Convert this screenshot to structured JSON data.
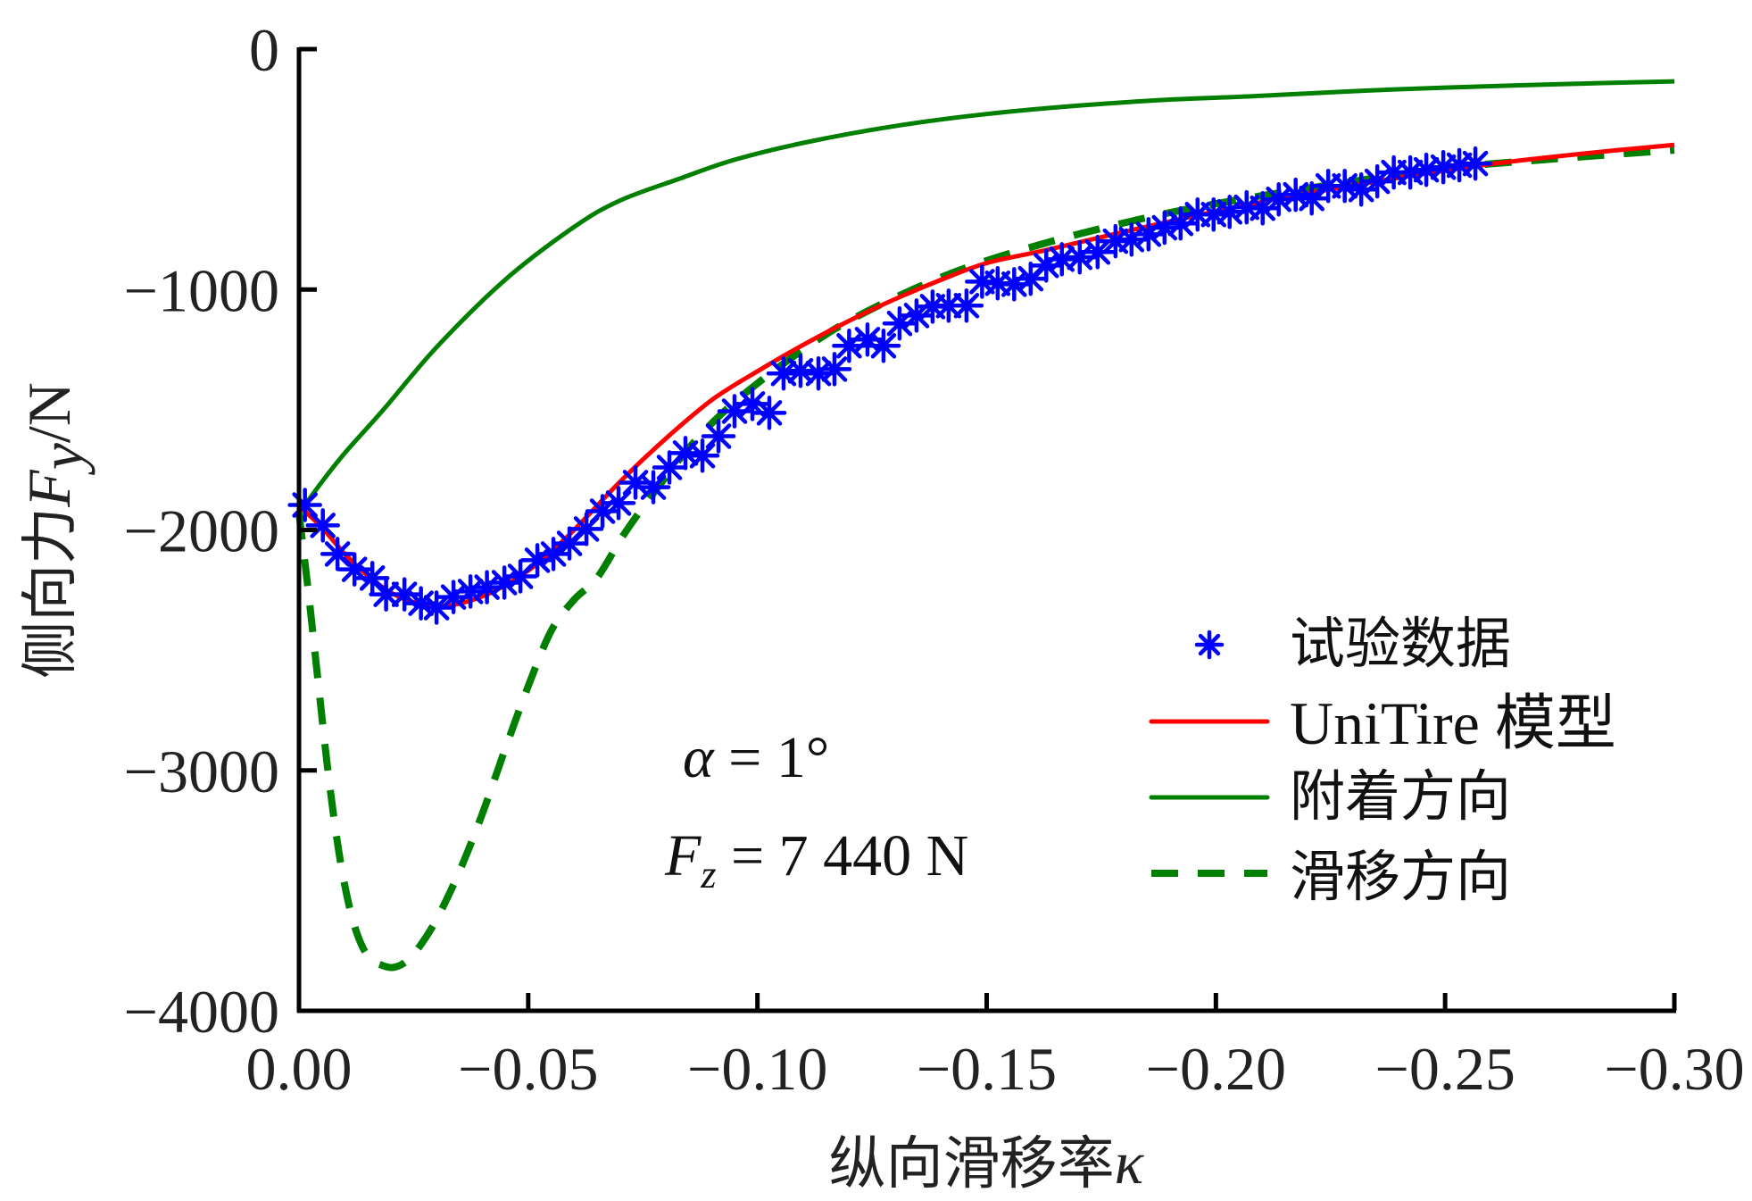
{
  "chart_data": {
    "type": "line",
    "title": "",
    "xlabel": "纵向滑移率κ",
    "xlabel_parts": {
      "text": "纵向滑移率",
      "symbol": "κ"
    },
    "ylabel": "侧向力Fy/N",
    "ylabel_parts": {
      "text": "侧向力",
      "symbol": "F",
      "subscript": "y",
      "unit": "/N"
    },
    "xlim": [
      0.0,
      -0.3
    ],
    "ylim": [
      -4000,
      0
    ],
    "x_ticks": [
      0.0,
      -0.05,
      -0.1,
      -0.15,
      -0.2,
      -0.25,
      -0.3
    ],
    "x_tick_labels": [
      "0.00",
      "−0.05",
      "−0.10",
      "−0.15",
      "−0.20",
      "−0.25",
      "−0.30"
    ],
    "y_ticks": [
      0,
      -1000,
      -2000,
      -3000,
      -4000
    ],
    "y_tick_labels": [
      "0",
      "−1000",
      "−2000",
      "−3000",
      "−4000"
    ],
    "grid": false,
    "legend_position": "center-right",
    "annotations": [
      {
        "label": "alpha",
        "text": "α = 1°",
        "symbol": "α",
        "rest": " = 1°"
      },
      {
        "label": "Fz",
        "text": "Fz = 7 440 N",
        "symbol": "F",
        "subscript": "z",
        "rest": " = 7 440 N"
      }
    ],
    "series": [
      {
        "name": "试验数据",
        "style": "marker-asterisk",
        "color": "#0000ff",
        "x": [
          -0.0013,
          -0.0052,
          -0.0084,
          -0.0121,
          -0.016,
          -0.019,
          -0.023,
          -0.0266,
          -0.03,
          -0.0337,
          -0.0374,
          -0.041,
          -0.0448,
          -0.0483,
          -0.052,
          -0.0555,
          -0.059,
          -0.0627,
          -0.0662,
          -0.0697,
          -0.0734,
          -0.0773,
          -0.0808,
          -0.0843,
          -0.088,
          -0.0915,
          -0.095,
          -0.0989,
          -0.1026,
          -0.1057,
          -0.1094,
          -0.1133,
          -0.1168,
          -0.12,
          -0.124,
          -0.1275,
          -0.131,
          -0.1347,
          -0.1382,
          -0.1417,
          -0.1456,
          -0.149,
          -0.1524,
          -0.156,
          -0.1596,
          -0.163,
          -0.1664,
          -0.1703,
          -0.1742,
          -0.1781,
          -0.1816,
          -0.1853,
          -0.1888,
          -0.1923,
          -0.196,
          -0.1995,
          -0.203,
          -0.2067,
          -0.2102,
          -0.2137,
          -0.2174,
          -0.2209,
          -0.2245,
          -0.2281,
          -0.2317,
          -0.2352,
          -0.2388,
          -0.2424,
          -0.2459,
          -0.2496,
          -0.2531,
          -0.2566
        ],
        "y": [
          -1896,
          -1981,
          -2100,
          -2164,
          -2200,
          -2268,
          -2268,
          -2305,
          -2323,
          -2279,
          -2256,
          -2238,
          -2219,
          -2193,
          -2126,
          -2100,
          -2056,
          -1996,
          -1922,
          -1888,
          -1803,
          -1822,
          -1740,
          -1680,
          -1691,
          -1610,
          -1506,
          -1476,
          -1513,
          -1349,
          -1338,
          -1349,
          -1331,
          -1234,
          -1208,
          -1234,
          -1141,
          -1108,
          -1071,
          -1067,
          -1067,
          -967,
          -974,
          -978,
          -955,
          -900,
          -874,
          -866,
          -844,
          -799,
          -792,
          -770,
          -743,
          -725,
          -688,
          -688,
          -677,
          -658,
          -662,
          -625,
          -606,
          -621,
          -569,
          -569,
          -584,
          -550,
          -513,
          -513,
          -502,
          -491,
          -483,
          -476
        ]
      },
      {
        "name": "UniTire 模型",
        "style": "solid",
        "color": "#ff0000",
        "x": [
          0.0,
          -0.005,
          -0.01,
          -0.015,
          -0.02,
          -0.025,
          -0.0315,
          -0.038,
          -0.045,
          -0.052,
          -0.06,
          -0.07,
          -0.08,
          -0.09,
          -0.1,
          -0.11,
          -0.12,
          -0.13,
          -0.14,
          -0.15,
          -0.163,
          -0.18,
          -0.2,
          -0.22,
          -0.24,
          -0.26,
          -0.28,
          -0.3
        ],
        "y": [
          -1900,
          -1990,
          -2100,
          -2190,
          -2260,
          -2300,
          -2316,
          -2290,
          -2230,
          -2140,
          -2000,
          -1800,
          -1620,
          -1460,
          -1340,
          -1230,
          -1130,
          -1040,
          -960,
          -890,
          -836,
          -760,
          -675,
          -600,
          -535,
          -478,
          -435,
          -398
        ]
      },
      {
        "name": "附着方向",
        "style": "solid",
        "color": "#007f00",
        "x": [
          0.0,
          -0.005,
          -0.01,
          -0.0185,
          -0.03,
          -0.045,
          -0.06,
          -0.07,
          -0.083,
          -0.095,
          -0.11,
          -0.13,
          -0.15,
          -0.17,
          -0.19,
          -0.207,
          -0.23,
          -0.25,
          -0.275,
          -0.3
        ],
        "y": [
          -1930,
          -1800,
          -1680,
          -1498,
          -1240,
          -959,
          -740,
          -630,
          -539,
          -460,
          -390,
          -320,
          -270,
          -235,
          -210,
          -197,
          -175,
          -160,
          -146,
          -134
        ]
      },
      {
        "name": "滑移方向",
        "style": "dashed",
        "color": "#007f00",
        "x": [
          0.0,
          -0.002,
          -0.004,
          -0.006,
          -0.008,
          -0.01,
          -0.012,
          -0.014,
          -0.016,
          -0.018,
          -0.0204,
          -0.023,
          -0.026,
          -0.03,
          -0.035,
          -0.04,
          -0.045,
          -0.05,
          -0.055,
          -0.06,
          -0.065,
          -0.071,
          -0.078,
          -0.085,
          -0.092,
          -0.1,
          -0.11,
          -0.12,
          -0.135,
          -0.15,
          -0.17,
          -0.19,
          -0.21,
          -0.23,
          -0.25,
          -0.275,
          -0.3
        ],
        "y": [
          -1930,
          -2250,
          -2600,
          -2950,
          -3250,
          -3480,
          -3640,
          -3740,
          -3790,
          -3810,
          -3820,
          -3800,
          -3740,
          -3620,
          -3420,
          -3180,
          -2910,
          -2650,
          -2420,
          -2290,
          -2200,
          -2015,
          -1830,
          -1660,
          -1520,
          -1390,
          -1250,
          -1130,
          -990,
          -880,
          -770,
          -680,
          -610,
          -550,
          -495,
          -455,
          -420
        ]
      }
    ]
  },
  "legend": {
    "items": [
      {
        "label": "试验数据",
        "style": "marker-asterisk",
        "color": "#0000ff"
      },
      {
        "label": "UniTire 模型",
        "style": "solid",
        "color": "#ff0000"
      },
      {
        "label": "附着方向",
        "style": "solid",
        "color": "#007f00"
      },
      {
        "label": "滑移方向",
        "style": "dashed",
        "color": "#007f00"
      }
    ]
  },
  "colors": {
    "axis": "#000000",
    "text": "#222222",
    "background": "#ffffff"
  }
}
